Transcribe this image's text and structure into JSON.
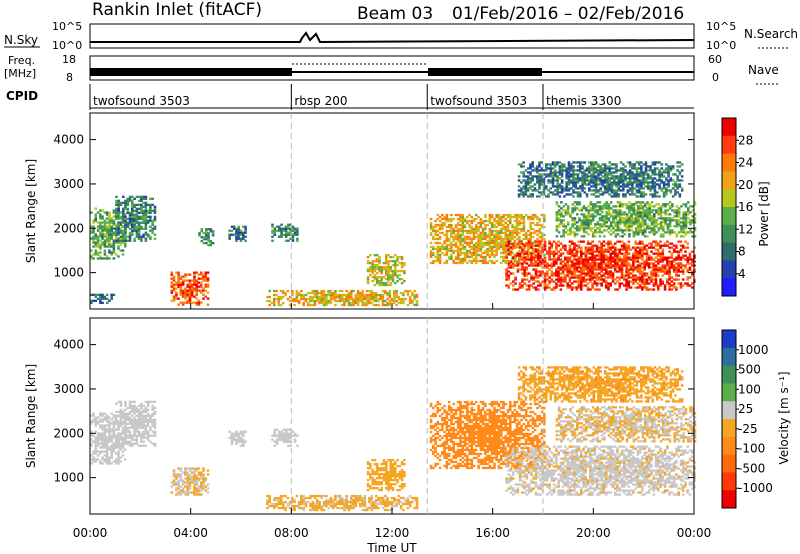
{
  "header": {
    "station": "Rankin Inlet (fitACF)",
    "beam": "Beam 03",
    "date_range": "01/Feb/2016 – 02/Feb/2016"
  },
  "top_panels": {
    "nsky_label": "N.Sky",
    "nsky_ticks": [
      "10^5",
      "10^0"
    ],
    "nsearch_label": "N.Search",
    "nsearch_ticks": [
      "10^5",
      "10^0"
    ],
    "freq_label_1": "Freq.",
    "freq_label_2": "[MHz]",
    "freq_ticks": [
      "18",
      "8"
    ],
    "nave_label": "Nave",
    "nave_ticks": [
      "60",
      "0"
    ],
    "cpid_label": "CPID"
  },
  "cpid_segments": [
    {
      "name": "twofsound 3503",
      "start_hour": 0.0
    },
    {
      "name": "rbsp 200",
      "start_hour": 8.0
    },
    {
      "name": "twofsound 3503",
      "start_hour": 13.4
    },
    {
      "name": "themis 3300",
      "start_hour": 18.0
    }
  ],
  "colors": {
    "power_scale": [
      "#1e1eff",
      "#2640b0",
      "#2f6d6d",
      "#3f8f5a",
      "#59b046",
      "#b7c81a",
      "#f0a019",
      "#ff7a0a",
      "#ff3d0a",
      "#ee0000"
    ],
    "velocity_scale": [
      "#1a3cc8",
      "#2a6f9e",
      "#3f8f5a",
      "#59b046",
      "#c8c8c8",
      "#f5a623",
      "#ff8a1a",
      "#ff6a0a",
      "#ff3a0a",
      "#ee0000"
    ]
  },
  "chart_data": [
    {
      "type": "heatmap",
      "panel": "power",
      "ylabel": "Slant Range [km]",
      "ylim": [
        180,
        4600
      ],
      "yticks": [
        1000,
        2000,
        3000,
        4000
      ],
      "colorbar": {
        "label": "Power [dB]",
        "ticks": [
          "28",
          "24",
          "20",
          "16",
          "12",
          "8",
          "4"
        ],
        "range": [
          0,
          32
        ]
      },
      "clusters": [
        {
          "t": [
            0.0,
            1.4
          ],
          "r": [
            1300,
            2450
          ],
          "v": 13
        },
        {
          "t": [
            1.0,
            2.6
          ],
          "r": [
            1700,
            2700
          ],
          "v": 10
        },
        {
          "t": [
            0.0,
            0.9
          ],
          "r": [
            300,
            500
          ],
          "v": 8
        },
        {
          "t": [
            3.2,
            4.7
          ],
          "r": [
            260,
            1000
          ],
          "v": 26
        },
        {
          "t": [
            4.3,
            4.9
          ],
          "r": [
            1600,
            2000
          ],
          "v": 11
        },
        {
          "t": [
            5.5,
            6.2
          ],
          "r": [
            1700,
            2050
          ],
          "v": 9
        },
        {
          "t": [
            7.2,
            8.2
          ],
          "r": [
            1700,
            2100
          ],
          "v": 11
        },
        {
          "t": [
            7.0,
            13.0
          ],
          "r": [
            250,
            600
          ],
          "v": 20
        },
        {
          "t": [
            11.0,
            12.5
          ],
          "r": [
            700,
            1400
          ],
          "v": 18
        },
        {
          "t": [
            13.5,
            18.0
          ],
          "r": [
            1200,
            2300
          ],
          "v": 20
        },
        {
          "t": [
            16.5,
            24.0
          ],
          "r": [
            600,
            1700
          ],
          "v": 28
        },
        {
          "t": [
            18.5,
            24.0
          ],
          "r": [
            1800,
            2600
          ],
          "v": 14
        },
        {
          "t": [
            17.0,
            23.5
          ],
          "r": [
            2700,
            3500
          ],
          "v": 9
        }
      ]
    },
    {
      "type": "heatmap",
      "panel": "velocity",
      "ylabel": "Slant Range [km]",
      "ylim": [
        180,
        4600
      ],
      "yticks": [
        1000,
        2000,
        3000,
        4000
      ],
      "xticks": [
        "00:00",
        "04:00",
        "08:00",
        "12:00",
        "16:00",
        "20:00",
        "00:00"
      ],
      "xlabel": "Time UT",
      "colorbar": {
        "label": "Velocity [m s⁻¹]",
        "ticks": [
          "1000",
          "500",
          "100",
          "25",
          "-25",
          "-100",
          "-500",
          "-1000"
        ],
        "range": [
          -1200,
          1200
        ]
      },
      "clusters": [
        {
          "t": [
            0.0,
            1.4
          ],
          "r": [
            1300,
            2450
          ],
          "v": 60
        },
        {
          "t": [
            1.0,
            2.6
          ],
          "r": [
            1700,
            2700
          ],
          "v": 60
        },
        {
          "t": [
            3.2,
            4.7
          ],
          "r": [
            600,
            1200
          ],
          "v": 0
        },
        {
          "t": [
            5.5,
            6.2
          ],
          "r": [
            1700,
            2050
          ],
          "v": 60
        },
        {
          "t": [
            7.2,
            8.2
          ],
          "r": [
            1700,
            2100
          ],
          "v": 60
        },
        {
          "t": [
            7.0,
            13.0
          ],
          "r": [
            250,
            600
          ],
          "v": -30
        },
        {
          "t": [
            11.0,
            12.5
          ],
          "r": [
            700,
            1400
          ],
          "v": -150
        },
        {
          "t": [
            13.5,
            18.0
          ],
          "r": [
            1200,
            2700
          ],
          "v": -300
        },
        {
          "t": [
            16.5,
            24.0
          ],
          "r": [
            600,
            1700
          ],
          "v": 40
        },
        {
          "t": [
            18.5,
            24.0
          ],
          "r": [
            1800,
            2600
          ],
          "v": 0
        },
        {
          "t": [
            17.0,
            23.5
          ],
          "r": [
            2700,
            3500
          ],
          "v": -200
        }
      ]
    }
  ]
}
